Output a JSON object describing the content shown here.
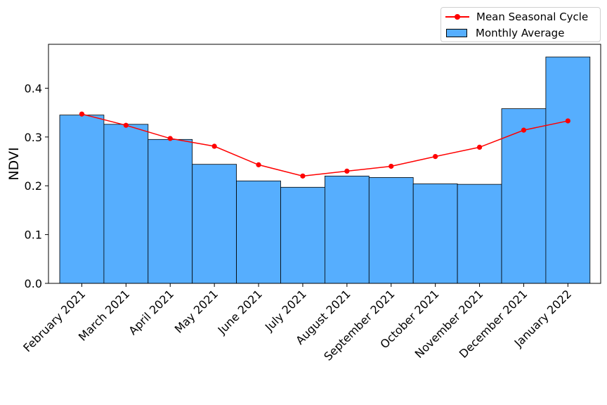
{
  "chart_data": {
    "type": "bar",
    "title": "",
    "xlabel": "",
    "ylabel": "NDVI",
    "ylim": [
      0,
      0.49
    ],
    "yticks": [
      0.0,
      0.1,
      0.2,
      0.3,
      0.4
    ],
    "ytick_labels": [
      "0.0",
      "0.1",
      "0.2",
      "0.3",
      "0.4"
    ],
    "categories": [
      "February 2021",
      "March 2021",
      "April 2021",
      "May 2021",
      "June 2021",
      "July 2021",
      "August 2021",
      "September 2021",
      "October 2021",
      "November 2021",
      "December 2021",
      "January 2022"
    ],
    "series": [
      {
        "name": "Monthly Average",
        "type": "bar",
        "values": [
          0.345,
          0.326,
          0.295,
          0.244,
          0.21,
          0.197,
          0.22,
          0.217,
          0.204,
          0.203,
          0.358,
          0.464
        ]
      },
      {
        "name": "Mean Seasonal Cycle",
        "type": "line",
        "values": [
          0.347,
          0.324,
          0.297,
          0.281,
          0.243,
          0.22,
          0.23,
          0.24,
          0.26,
          0.279,
          0.314,
          0.333
        ]
      }
    ],
    "legend": "top-right outside",
    "grid": false
  },
  "colors": {
    "bar_fill": "#56aefe",
    "bar_edge": "#000000",
    "line": "#ff0000",
    "axis": "#000000"
  }
}
